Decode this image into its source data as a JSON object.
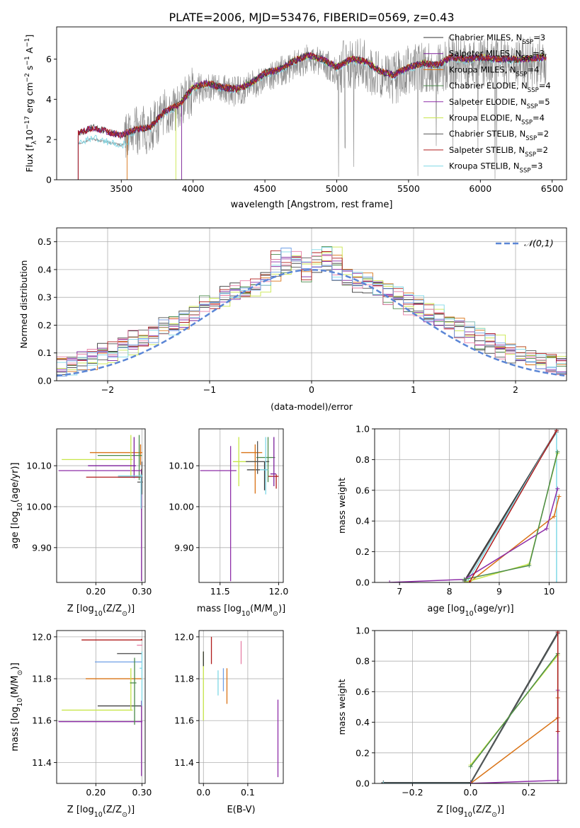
{
  "figure": {
    "suptitle": "PLATE=2006, MJD=53476, FIBERID=0569, z=0.43"
  },
  "series_styles": [
    {
      "name": "Chabrier MILES",
      "nssp": "3",
      "color": "#333333"
    },
    {
      "name": "Salpeter MILES",
      "nssp": "3",
      "color": "#7a1f9a"
    },
    {
      "name": "Kroupa MILES",
      "nssp": "4",
      "color": "#d97316"
    },
    {
      "name": "Chabrier ELODIE",
      "nssp": "4",
      "color": "#4a8a4a"
    },
    {
      "name": "Salpeter ELODIE",
      "nssp": "5",
      "color": "#8e2ea8"
    },
    {
      "name": "Kroupa ELODIE",
      "nssp": "4",
      "color": "#c8e64a"
    },
    {
      "name": "Chabrier STELIB",
      "nssp": "2",
      "color": "#555555"
    },
    {
      "name": "Salpeter STELIB",
      "nssp": "2",
      "color": "#b01c1c"
    },
    {
      "name": "Kroupa STELIB",
      "nssp": "3",
      "color": "#7fd8e6"
    }
  ],
  "chart_data": [
    {
      "id": "spectrum",
      "type": "line",
      "xlabel": "wavelength [Angstrom, rest frame]",
      "ylabel_parts": [
        "Flux [f",
        "λ",
        "10",
        "−17",
        " erg cm",
        "−2",
        " s",
        "−1",
        " A",
        "−1",
        "]"
      ],
      "xlim": [
        3050,
        6600
      ],
      "ylim": [
        0,
        7.6
      ],
      "xticks": [
        3500,
        4000,
        4500,
        5000,
        5500,
        6000,
        6500
      ],
      "yticks": [
        0,
        2,
        4,
        6
      ],
      "grid": false,
      "legend_position": "upper-right",
      "legend_label_suffix": "N",
      "legend_label_sub": "SSP",
      "data_color": "#888888",
      "data_start": 3200,
      "anchors_x": [
        3200,
        3300,
        3400,
        3500,
        3600,
        3700,
        3800,
        3900,
        4000,
        4100,
        4200,
        4300,
        4400,
        4500,
        4600,
        4700,
        4800,
        4900,
        5000,
        5100,
        5200,
        5300,
        5400,
        5500,
        5600,
        5700,
        5800,
        5900,
        6000,
        6100,
        6200,
        6300,
        6450
      ],
      "anchors_y": [
        2.3,
        2.6,
        2.4,
        2.2,
        2.5,
        2.6,
        3.4,
        3.7,
        4.6,
        4.8,
        4.6,
        4.5,
        4.8,
        5.3,
        5.5,
        5.9,
        6.2,
        6.0,
        5.6,
        6.0,
        5.9,
        5.4,
        5.2,
        5.6,
        5.8,
        5.7,
        6.1,
        6.0,
        6.1,
        6.0,
        6.0,
        6.0,
        6.1
      ],
      "model_starts": [
        3200,
        3200,
        3540,
        3920,
        3920,
        3880,
        3200,
        3200,
        3200
      ]
    },
    {
      "id": "residuals",
      "type": "histogram",
      "xlabel": "(data-model)/error",
      "ylabel": "Normed distribution",
      "xlim": [
        -2.5,
        2.5
      ],
      "ylim": [
        0,
        0.55
      ],
      "xticks": [
        -2,
        -1,
        0,
        1,
        2
      ],
      "yticks": [
        0.0,
        0.1,
        0.2,
        0.3,
        0.4,
        0.5
      ],
      "grid": true,
      "legend_position": "upper-right",
      "legend_label": "𝒩(0,1)",
      "gauss_color": "#5b86d6",
      "extra_colors": [
        "#e67fa5",
        "#6fa0e6"
      ],
      "bin_width": 0.1
    },
    {
      "id": "age-vs-z",
      "type": "errorbar",
      "xlabel_parts": [
        "Z [log",
        "10",
        "(Z/Z",
        "⊙",
        ")]"
      ],
      "ylabel_parts": [
        "age  [log",
        "10",
        "(age/yr)]"
      ],
      "xlim": [
        0.115,
        0.307
      ],
      "ylim": [
        9.815,
        10.19
      ],
      "xticks": [
        0.2,
        0.3
      ],
      "yticks": [
        9.9,
        10.0,
        10.1
      ],
      "grid": true,
      "points": [
        {
          "x": 0.298,
          "y": 10.072,
          "xerr": [
            0.05,
            0.003
          ],
          "yerr": [
            0.005,
            0.005
          ],
          "c": 0
        },
        {
          "x": 0.299,
          "y": 10.072,
          "xerr": [
            0.12,
            0.002
          ],
          "yerr": [
            0.08,
            0.02
          ],
          "c": 7
        },
        {
          "x": 0.297,
          "y": 10.132,
          "xerr": [
            0.11,
            0.004
          ],
          "yerr": [
            0.03,
            0.02
          ],
          "c": 2
        },
        {
          "x": 0.294,
          "y": 10.125,
          "xerr": [
            0.09,
            0.006
          ],
          "yerr": [
            0.06,
            0.05
          ],
          "c": 3
        },
        {
          "x": 0.299,
          "y": 10.088,
          "xerr": [
            0.18,
            0.002
          ],
          "yerr": [
            0.27,
            0.002
          ],
          "c": 4
        },
        {
          "x": 0.276,
          "y": 10.115,
          "xerr": [
            0.15,
            0.004
          ],
          "yerr": [
            0.04,
            0.06
          ],
          "c": 5
        },
        {
          "x": 0.3,
          "y": 10.06,
          "xerr": [
            0.01,
            0.002
          ],
          "yerr": [
            0.03,
            0.05
          ],
          "c": 6
        },
        {
          "x": 0.283,
          "y": 10.1,
          "xerr": [
            0.1,
            0.004
          ],
          "yerr": [
            0.03,
            0.07
          ],
          "c": 1
        },
        {
          "x": 0.298,
          "y": 10.075,
          "xerr": [
            0.05,
            0.003
          ],
          "yerr": [
            0.08,
            0.005
          ],
          "c": 8
        }
      ]
    },
    {
      "id": "age-vs-mass",
      "type": "errorbar",
      "xlabel_parts": [
        "mass [log",
        "10",
        "(M/M",
        "⊙",
        ")]"
      ],
      "xlim": [
        11.32,
        12.04
      ],
      "ylim": [
        9.815,
        10.19
      ],
      "xticks": [
        11.5,
        12.0
      ],
      "yticks": [
        9.9,
        10.0,
        10.1
      ],
      "grid": true,
      "points": [
        {
          "x": 11.88,
          "y": 10.09,
          "xerr": [
            0.15,
            0.03
          ],
          "yerr": [
            0.05,
            0.02
          ],
          "c": 0
        },
        {
          "x": 11.98,
          "y": 10.074,
          "xerr": [
            0.07,
            0.02
          ],
          "yerr": [
            0.03,
            0.005
          ],
          "c": 7
        },
        {
          "x": 11.8,
          "y": 10.132,
          "xerr": [
            0.12,
            0.06
          ],
          "yerr": [
            0.1,
            0.02
          ],
          "c": 2
        },
        {
          "x": 11.91,
          "y": 10.12,
          "xerr": [
            0.1,
            0.06
          ],
          "yerr": [
            0.06,
            0.05
          ],
          "c": 3
        },
        {
          "x": 11.59,
          "y": 10.088,
          "xerr": [
            0.26,
            0.05
          ],
          "yerr": [
            0.27,
            0.06
          ],
          "c": 4
        },
        {
          "x": 11.66,
          "y": 10.11,
          "xerr": [
            0.05,
            0.15
          ],
          "yerr": [
            0.06,
            0.06
          ],
          "c": 5
        },
        {
          "x": 11.82,
          "y": 10.11,
          "xerr": [
            0.1,
            0.1
          ],
          "yerr": [
            0.03,
            0.05
          ],
          "c": 6
        },
        {
          "x": 11.96,
          "y": 10.08,
          "xerr": [
            0.03,
            0.02
          ],
          "yerr": [
            0.03,
            0.09
          ],
          "c": 1
        },
        {
          "x": 11.89,
          "y": 10.09,
          "xerr": [
            0.05,
            0.02
          ],
          "yerr": [
            0.06,
            0.08
          ],
          "c": 8
        }
      ]
    },
    {
      "id": "weight-vs-age",
      "type": "line",
      "xlabel_parts": [
        "age  [log",
        "10",
        "(age/yr)]"
      ],
      "ylabel": "mass weight",
      "xlim": [
        6.5,
        10.35
      ],
      "ylim": [
        0,
        1.0
      ],
      "xticks": [
        7,
        8,
        9,
        10
      ],
      "yticks": [
        0.0,
        0.2,
        0.4,
        0.6,
        0.8,
        1.0
      ],
      "grid": true,
      "series": [
        {
          "c": 0,
          "x": [
            8.3,
            10.15
          ],
          "y": [
            0.01,
            0.99
          ]
        },
        {
          "c": 6,
          "x": [
            8.32,
            10.15
          ],
          "y": [
            0.01,
            0.98
          ]
        },
        {
          "c": 8,
          "x": [
            8.35,
            10.15,
            10.15
          ],
          "y": [
            0.0,
            0.99,
            0.0
          ]
        },
        {
          "c": 2,
          "x": [
            8.4,
            10.1,
            10.2
          ],
          "y": [
            0.0,
            0.43,
            0.56
          ]
        },
        {
          "c": 4,
          "x": [
            6.8,
            8.3,
            9.95,
            10.17
          ],
          "y": [
            0.0,
            0.02,
            0.35,
            0.61
          ]
        },
        {
          "c": 5,
          "x": [
            8.3,
            9.6,
            10.17
          ],
          "y": [
            0.0,
            0.12,
            0.84
          ]
        },
        {
          "c": 3,
          "x": [
            8.3,
            9.6,
            10.17
          ],
          "y": [
            0.02,
            0.11,
            0.85
          ]
        },
        {
          "c": 7,
          "x": [
            8.4,
            10.15
          ],
          "y": [
            0.0,
            0.99
          ]
        }
      ]
    },
    {
      "id": "mass-vs-z",
      "type": "errorbar",
      "xlabel_parts": [
        "Z [log",
        "10",
        "(Z/Z",
        "⊙",
        ")]"
      ],
      "ylabel_parts": [
        "mass [log",
        "10",
        "(M/M",
        "⊙",
        ")]"
      ],
      "xlim": [
        0.115,
        0.307
      ],
      "ylim": [
        11.3,
        12.03
      ],
      "xticks": [
        0.2,
        0.3
      ],
      "yticks": [
        11.4,
        11.6,
        11.8,
        12.0
      ],
      "grid": true,
      "points": [
        {
          "x": 0.299,
          "y": 11.985,
          "xerr": [
            0.13,
            0.002
          ],
          "yerr": [
            0.0,
            0.005
          ],
          "c": 7
        },
        {
          "x": 0.299,
          "y": 11.96,
          "xerr": [
            0.01,
            0.002
          ],
          "yerr": [
            0.0,
            0.0
          ],
          "c": 9
        },
        {
          "x": 0.296,
          "y": 11.92,
          "xerr": [
            0.05,
            0.003
          ],
          "yerr": [
            0.0,
            0.0
          ],
          "c": 6
        },
        {
          "x": 0.298,
          "y": 11.88,
          "xerr": [
            0.1,
            0.003
          ],
          "yerr": [
            0.0,
            0.0
          ],
          "c": 10
        },
        {
          "x": 0.298,
          "y": 11.8,
          "xerr": [
            0.12,
            0.003
          ],
          "yerr": [
            0.0,
            0.0
          ],
          "c": 2
        },
        {
          "x": 0.294,
          "y": 11.67,
          "xerr": [
            0.09,
            0.006
          ],
          "yerr": [
            0.0,
            0.0
          ],
          "c": 0
        },
        {
          "x": 0.276,
          "y": 11.65,
          "xerr": [
            0.15,
            0.004
          ],
          "yerr": [
            0.0,
            0.2
          ],
          "c": 5
        },
        {
          "x": 0.299,
          "y": 11.595,
          "xerr": [
            0.18,
            0.002
          ],
          "yerr": [
            0.26,
            0.1
          ],
          "c": 4
        },
        {
          "x": 0.284,
          "y": 11.78,
          "xerr": [
            0.01,
            0.004
          ],
          "yerr": [
            0.2,
            0.12
          ],
          "c": 3
        },
        {
          "x": 0.3,
          "y": 11.85,
          "xerr": [
            0.005,
            0.0
          ],
          "yerr": [
            0.18,
            0.08
          ],
          "c": 8
        }
      ]
    },
    {
      "id": "mass-vs-ebv",
      "type": "errorbar",
      "xlabel": "E(B-V)",
      "xlim": [
        -0.01,
        0.18
      ],
      "ylim": [
        11.3,
        12.03
      ],
      "xticks": [
        0.0,
        0.1
      ],
      "yticks": [
        11.4,
        11.6,
        11.8,
        12.0
      ],
      "grid": true,
      "points": [
        {
          "x": 0.0,
          "y": 11.8,
          "xerr": [
            0.0,
            0.0
          ],
          "yerr": [
            0.2,
            0.13
          ],
          "c": 5
        },
        {
          "x": 0.0,
          "y": 11.86,
          "xerr": [
            0.0,
            0.0
          ],
          "yerr": [
            0.0,
            0.07
          ],
          "c": 0
        },
        {
          "x": 0.018,
          "y": 11.92,
          "xerr": [
            0.0,
            0.0
          ],
          "yerr": [
            0.05,
            0.08
          ],
          "c": 7
        },
        {
          "x": 0.033,
          "y": 11.79,
          "xerr": [
            0.0,
            0.0
          ],
          "yerr": [
            0.07,
            0.05
          ],
          "c": 8
        },
        {
          "x": 0.045,
          "y": 11.79,
          "xerr": [
            0.0,
            0.0
          ],
          "yerr": [
            0.05,
            0.06
          ],
          "c": 10
        },
        {
          "x": 0.053,
          "y": 11.75,
          "xerr": [
            0.0,
            0.0
          ],
          "yerr": [
            0.07,
            0.1
          ],
          "c": 2
        },
        {
          "x": 0.085,
          "y": 11.92,
          "xerr": [
            0.0,
            0.0
          ],
          "yerr": [
            0.05,
            0.06
          ],
          "c": 9
        },
        {
          "x": 0.168,
          "y": 11.5,
          "xerr": [
            0.0,
            0.0
          ],
          "yerr": [
            0.17,
            0.2
          ],
          "c": 4
        }
      ]
    },
    {
      "id": "weight-vs-z",
      "type": "line",
      "xlabel_parts": [
        "Z [log",
        "10",
        "(Z/Z",
        "⊙",
        ")]"
      ],
      "ylabel": "mass weight",
      "xlim": [
        -0.33,
        0.33
      ],
      "ylim": [
        0,
        1.0
      ],
      "xticks": [
        -0.2,
        0.0,
        0.2
      ],
      "yticks": [
        0.0,
        0.2,
        0.4,
        0.6,
        0.8,
        1.0
      ],
      "grid": true,
      "series": [
        {
          "c": 0,
          "x": [
            -0.3,
            0.0,
            0.3
          ],
          "y": [
            0.005,
            0.005,
            0.99
          ]
        },
        {
          "c": 8,
          "x": [
            -0.3,
            0.0,
            0.3
          ],
          "y": [
            0.0,
            0.0,
            0.98
          ]
        },
        {
          "c": 6,
          "x": [
            0.0,
            0.3
          ],
          "y": [
            0.0,
            0.98
          ]
        },
        {
          "c": 5,
          "x": [
            0.0,
            0.3,
            0.3
          ],
          "y": [
            0.12,
            0.84,
            0.0
          ]
        },
        {
          "c": 3,
          "x": [
            0.0,
            0.3,
            0.3
          ],
          "y": [
            0.11,
            0.85,
            0.0
          ]
        },
        {
          "c": 2,
          "x": [
            0.0,
            0.3,
            0.3
          ],
          "y": [
            0.0,
            0.43,
            0.56
          ]
        },
        {
          "c": 4,
          "x": [
            0.0,
            0.3,
            0.3
          ],
          "y": [
            0.0,
            0.02,
            0.61
          ]
        },
        {
          "c": 7,
          "x": [
            0.3,
            0.3
          ],
          "y": [
            0.34,
            0.99
          ]
        }
      ]
    }
  ]
}
